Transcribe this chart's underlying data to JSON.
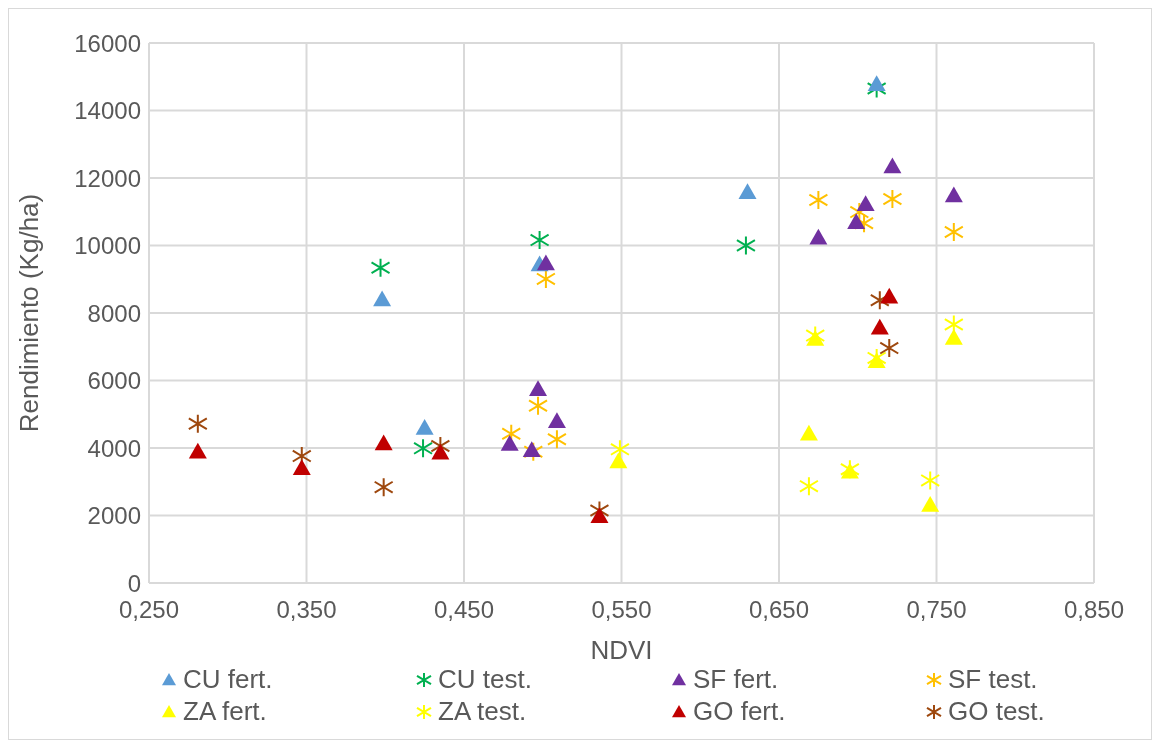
{
  "chart_data": {
    "type": "scatter",
    "xlabel": "NDVI",
    "ylabel": "Rendimiento (Kg/ha)",
    "xlim": [
      0.25,
      0.85
    ],
    "xticks": [
      {
        "value": 0.25,
        "label": "0,250"
      },
      {
        "value": 0.35,
        "label": "0,350"
      },
      {
        "value": 0.45,
        "label": "0,450"
      },
      {
        "value": 0.55,
        "label": "0,550"
      },
      {
        "value": 0.65,
        "label": "0,650"
      },
      {
        "value": 0.75,
        "label": "0,750"
      },
      {
        "value": 0.85,
        "label": "0,850"
      }
    ],
    "ylim": [
      0,
      16000
    ],
    "yticks": [
      0,
      2000,
      4000,
      6000,
      8000,
      10000,
      12000,
      14000,
      16000
    ],
    "grid": true,
    "legend": "bottom",
    "series": [
      {
        "name": "CU fert.",
        "color": "#5b9bd5",
        "marker": "triangle",
        "x": [
          0.398,
          0.425,
          0.498,
          0.63,
          0.712
        ],
        "values": [
          8400,
          4590,
          9440,
          11580,
          14780
        ]
      },
      {
        "name": "CU test.",
        "color": "#00b050",
        "marker": "cross",
        "x": [
          0.397,
          0.424,
          0.498,
          0.629,
          0.712
        ],
        "values": [
          9340,
          3990,
          10160,
          10000,
          14650
        ]
      },
      {
        "name": "SF fert.",
        "color": "#7030a0",
        "marker": "triangle",
        "x": [
          0.479,
          0.493,
          0.497,
          0.509,
          0.502,
          0.722,
          0.705,
          0.699,
          0.675,
          0.761
        ],
        "values": [
          4120,
          3930,
          5740,
          4790,
          9470,
          12340,
          11220,
          10690,
          10230,
          11480
        ]
      },
      {
        "name": "SF test.",
        "color": "#ffc000",
        "marker": "cross",
        "x": [
          0.48,
          0.497,
          0.494,
          0.509,
          0.502,
          0.675,
          0.701,
          0.704,
          0.722,
          0.761
        ],
        "values": [
          4420,
          5250,
          3890,
          4260,
          9010,
          11350,
          10990,
          10660,
          11380,
          10400
        ]
      },
      {
        "name": "ZA fert.",
        "color": "#ffff00",
        "marker": "triangle",
        "x": [
          0.673,
          0.712,
          0.761,
          0.669,
          0.695,
          0.746,
          0.548
        ],
        "values": [
          7230,
          6570,
          7260,
          4420,
          3300,
          2310,
          3600
        ]
      },
      {
        "name": "ZA test.",
        "color": "#ffff00",
        "marker": "cross",
        "x": [
          0.673,
          0.712,
          0.761,
          0.669,
          0.695,
          0.746,
          0.549
        ],
        "values": [
          7330,
          6670,
          7660,
          2870,
          3370,
          3040,
          3960
        ]
      },
      {
        "name": "GO fert.",
        "color": "#c00000",
        "marker": "triangle",
        "x": [
          0.281,
          0.347,
          0.399,
          0.435,
          0.536,
          0.72,
          0.714
        ],
        "values": [
          3890,
          3400,
          4130,
          3860,
          1980,
          8480,
          7560
        ]
      },
      {
        "name": "GO test.",
        "color": "#9e480e",
        "marker": "cross",
        "x": [
          0.281,
          0.347,
          0.399,
          0.435,
          0.536,
          0.714,
          0.72
        ],
        "values": [
          4720,
          3760,
          2840,
          4060,
          2150,
          8380,
          6960
        ]
      }
    ]
  }
}
